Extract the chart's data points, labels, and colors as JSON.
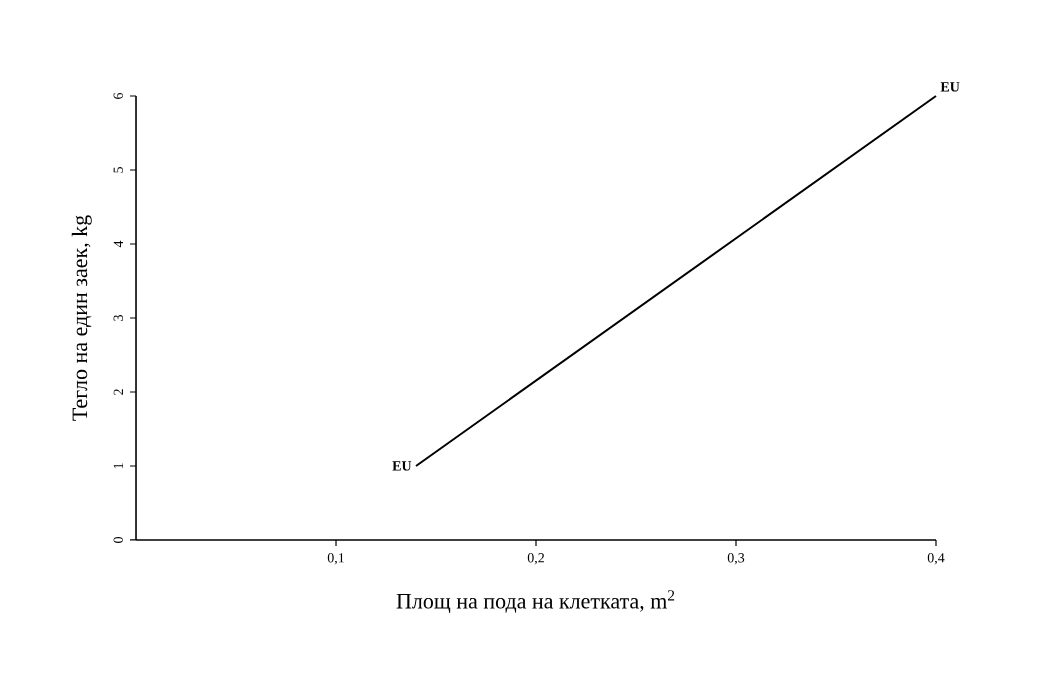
{
  "chart_data": {
    "type": "line",
    "xlabel": "Площ на пода на клетката, m$^{2}$",
    "ylabel": "Тегло на един заек, kg",
    "x": [
      0.14,
      0.4
    ],
    "series": [
      {
        "color": "#000000",
        "values": [
          1,
          6
        ]
      }
    ],
    "xlim": [
      0,
      0.4
    ],
    "ylim": [
      0,
      6
    ],
    "xticks": [
      {
        "value": 0.1,
        "label": "0,1"
      },
      {
        "value": 0.2,
        "label": "0,2"
      },
      {
        "value": 0.3,
        "label": "0,3"
      },
      {
        "value": 0.4,
        "label": "0,4"
      }
    ],
    "yticks": [
      0,
      1,
      2,
      3,
      4,
      5,
      6
    ],
    "annotations": [
      {
        "text": "EU",
        "x": 0.14,
        "y": 1
      },
      {
        "text": "EU",
        "x": 0.4,
        "y": 6
      }
    ],
    "grid": false,
    "marker": "none",
    "line_style": "solid"
  }
}
